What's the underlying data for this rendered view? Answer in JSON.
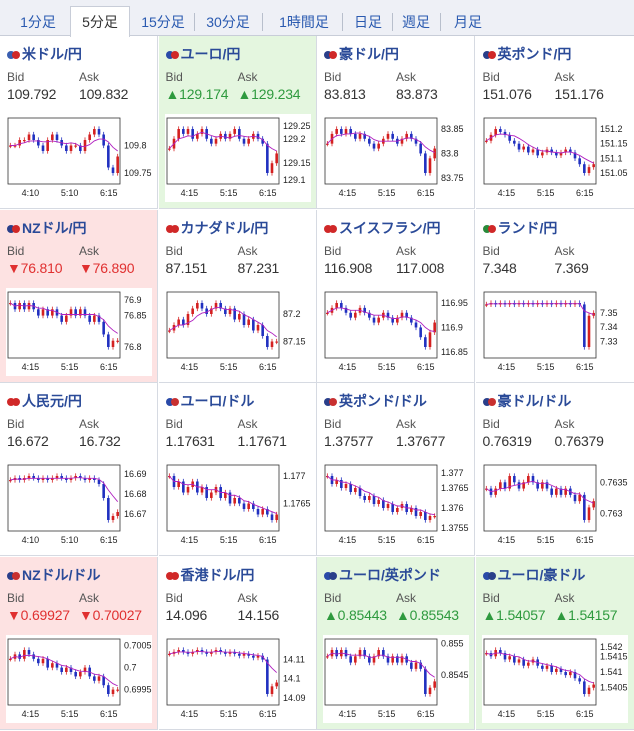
{
  "tabs": [
    "1分足",
    "5分足",
    "15分足",
    "30分足",
    "1時間足",
    "日足",
    "週足",
    "月足"
  ],
  "active_tab": 1,
  "cells": [
    {
      "pair": "米ドル/円",
      "trend": "none",
      "bid": "109.792",
      "ask": "109.832",
      "bid_dir": "",
      "ask_dir": "",
      "flag": [
        "#3a5fb0",
        "#d02828"
      ],
      "chart_data": {
        "type": "candlestick",
        "x_ticks": [
          "4:10",
          "5:10",
          "6:15"
        ],
        "y_ticks": [
          "109.8",
          "109.75"
        ],
        "closes": [
          109.8,
          109.8,
          109.81,
          109.81,
          109.82,
          109.81,
          109.8,
          109.79,
          109.81,
          109.82,
          109.81,
          109.8,
          109.79,
          109.8,
          109.8,
          109.79,
          109.81,
          109.82,
          109.83,
          109.82,
          109.8,
          109.76,
          109.75,
          109.78
        ]
      }
    },
    {
      "pair": "ユーロ/円",
      "trend": "up",
      "bid": "129.174",
      "ask": "129.234",
      "bid_dir": "▲",
      "ask_dir": "▲",
      "flag": [
        "#2a4aa8",
        "#d02828"
      ],
      "chart_data": {
        "type": "candlestick",
        "x_ticks": [
          "4:15",
          "5:15",
          "6:15"
        ],
        "y_ticks": [
          "129.25",
          "129.2",
          "129.15",
          "129.1"
        ],
        "closes": [
          129.18,
          129.2,
          129.22,
          129.21,
          129.22,
          129.2,
          129.21,
          129.22,
          129.2,
          129.19,
          129.2,
          129.21,
          129.2,
          129.21,
          129.22,
          129.2,
          129.19,
          129.2,
          129.21,
          129.2,
          129.19,
          129.13,
          129.15,
          129.17
        ]
      }
    },
    {
      "pair": "豪ドル/円",
      "trend": "none",
      "bid": "83.813",
      "ask": "83.873",
      "bid_dir": "",
      "ask_dir": "",
      "flag": [
        "#2a3f8a",
        "#d02828"
      ],
      "chart_data": {
        "type": "candlestick",
        "x_ticks": [
          "4:15",
          "5:15",
          "6:15"
        ],
        "y_ticks": [
          "83.85",
          "83.8",
          "83.75"
        ],
        "closes": [
          83.82,
          83.84,
          83.85,
          83.84,
          83.85,
          83.84,
          83.83,
          83.84,
          83.83,
          83.82,
          83.81,
          83.82,
          83.83,
          83.84,
          83.83,
          83.82,
          83.83,
          83.84,
          83.83,
          83.82,
          83.8,
          83.76,
          83.79,
          83.81
        ]
      }
    },
    {
      "pair": "英ポンド/円",
      "trend": "none",
      "bid": "151.076",
      "ask": "151.176",
      "bid_dir": "",
      "ask_dir": "",
      "flag": [
        "#2a3f8a",
        "#d02828"
      ],
      "chart_data": {
        "type": "candlestick",
        "x_ticks": [
          "4:15",
          "5:15",
          "6:15"
        ],
        "y_ticks": [
          "151.2",
          "151.15",
          "151.1",
          "151.05"
        ],
        "closes": [
          151.16,
          151.18,
          151.2,
          151.19,
          151.18,
          151.16,
          151.15,
          151.13,
          151.14,
          151.12,
          151.13,
          151.11,
          151.12,
          151.13,
          151.12,
          151.11,
          151.12,
          151.13,
          151.12,
          151.1,
          151.08,
          151.05,
          151.07,
          151.08
        ]
      }
    },
    {
      "pair": "NZドル/円",
      "trend": "down",
      "bid": "76.810",
      "ask": "76.890",
      "bid_dir": "▼",
      "ask_dir": "▼",
      "flag": [
        "#2a3f8a",
        "#d02828"
      ],
      "chart_data": {
        "type": "candlestick",
        "x_ticks": [
          "4:15",
          "5:15",
          "6:15"
        ],
        "y_ticks": [
          "76.9",
          "76.85",
          "76.8"
        ],
        "closes": [
          76.87,
          76.86,
          76.87,
          76.86,
          76.87,
          76.86,
          76.85,
          76.86,
          76.85,
          76.86,
          76.85,
          76.84,
          76.85,
          76.86,
          76.85,
          76.86,
          76.85,
          76.84,
          76.85,
          76.84,
          76.82,
          76.8,
          76.81,
          76.81
        ]
      }
    },
    {
      "pair": "カナダドル/円",
      "trend": "none",
      "bid": "87.151",
      "ask": "87.231",
      "bid_dir": "",
      "ask_dir": "",
      "flag": [
        "#d02828",
        "#d02828"
      ],
      "chart_data": {
        "type": "candlestick",
        "x_ticks": [
          "4:15",
          "5:15",
          "6:15"
        ],
        "y_ticks": [
          "87.2",
          "87.15"
        ],
        "closes": [
          87.17,
          87.18,
          87.19,
          87.18,
          87.2,
          87.21,
          87.22,
          87.21,
          87.2,
          87.21,
          87.22,
          87.21,
          87.2,
          87.21,
          87.19,
          87.2,
          87.18,
          87.19,
          87.17,
          87.18,
          87.16,
          87.14,
          87.15,
          87.15
        ]
      }
    },
    {
      "pair": "スイスフラン/円",
      "trend": "none",
      "bid": "116.908",
      "ask": "117.008",
      "bid_dir": "",
      "ask_dir": "",
      "flag": [
        "#d02828",
        "#d02828"
      ],
      "chart_data": {
        "type": "candlestick",
        "x_ticks": [
          "4:15",
          "5:15",
          "6:15"
        ],
        "y_ticks": [
          "116.95",
          "116.9",
          "116.85"
        ],
        "closes": [
          116.93,
          116.94,
          116.95,
          116.94,
          116.93,
          116.92,
          116.93,
          116.94,
          116.93,
          116.92,
          116.91,
          116.92,
          116.93,
          116.92,
          116.91,
          116.92,
          116.93,
          116.92,
          116.91,
          116.9,
          116.88,
          116.86,
          116.89,
          116.91
        ]
      }
    },
    {
      "pair": "ランド/円",
      "trend": "none",
      "bid": "7.348",
      "ask": "7.369",
      "bid_dir": "",
      "ask_dir": "",
      "flag": [
        "#2a8a3a",
        "#d02828"
      ],
      "chart_data": {
        "type": "candlestick",
        "x_ticks": [
          "4:15",
          "5:15",
          "6:15"
        ],
        "y_ticks": [
          "7.35",
          "7.34",
          "7.33"
        ],
        "closes": [
          7.356,
          7.357,
          7.356,
          7.357,
          7.356,
          7.357,
          7.356,
          7.357,
          7.356,
          7.357,
          7.356,
          7.357,
          7.356,
          7.357,
          7.356,
          7.357,
          7.356,
          7.357,
          7.356,
          7.357,
          7.356,
          7.326,
          7.348,
          7.35
        ]
      }
    },
    {
      "pair": "人民元/円",
      "trend": "none",
      "bid": "16.672",
      "ask": "16.732",
      "bid_dir": "",
      "ask_dir": "",
      "flag": [
        "#d02828",
        "#d02828"
      ],
      "chart_data": {
        "type": "candlestick",
        "x_ticks": [
          "4:10",
          "5:10",
          "6:15"
        ],
        "y_ticks": [
          "16.69",
          "16.68",
          "16.67"
        ],
        "closes": [
          16.687,
          16.688,
          16.687,
          16.688,
          16.689,
          16.688,
          16.687,
          16.688,
          16.687,
          16.688,
          16.689,
          16.688,
          16.687,
          16.688,
          16.689,
          16.688,
          16.687,
          16.688,
          16.687,
          16.685,
          16.678,
          16.667,
          16.669,
          16.671
        ]
      }
    },
    {
      "pair": "ユーロ/ドル",
      "trend": "none",
      "bid": "1.17631",
      "ask": "1.17671",
      "bid_dir": "",
      "ask_dir": "",
      "flag": [
        "#2a4aa8",
        "#c83030"
      ],
      "chart_data": {
        "type": "candlestick",
        "x_ticks": [
          "4:15",
          "5:15",
          "6:15"
        ],
        "y_ticks": [
          "1.177",
          "1.1765"
        ],
        "closes": [
          1.177,
          1.1768,
          1.1769,
          1.1767,
          1.1768,
          1.1769,
          1.1767,
          1.1768,
          1.1766,
          1.1767,
          1.1768,
          1.1766,
          1.1767,
          1.1765,
          1.1766,
          1.1765,
          1.1764,
          1.1765,
          1.1764,
          1.1763,
          1.1764,
          1.1763,
          1.1762,
          1.1763
        ]
      }
    },
    {
      "pair": "英ポンド/ドル",
      "trend": "none",
      "bid": "1.37577",
      "ask": "1.37677",
      "bid_dir": "",
      "ask_dir": "",
      "flag": [
        "#2a3f8a",
        "#c83030"
      ],
      "chart_data": {
        "type": "candlestick",
        "x_ticks": [
          "4:15",
          "5:15",
          "6:15"
        ],
        "y_ticks": [
          "1.377",
          "1.3765",
          "1.376",
          "1.3755"
        ],
        "closes": [
          1.3768,
          1.3766,
          1.3767,
          1.3765,
          1.3766,
          1.3764,
          1.3765,
          1.3763,
          1.3762,
          1.3763,
          1.3761,
          1.3762,
          1.376,
          1.3761,
          1.3759,
          1.376,
          1.3761,
          1.3759,
          1.376,
          1.3758,
          1.3759,
          1.3757,
          1.3758,
          1.3758
        ]
      }
    },
    {
      "pair": "豪ドル/ドル",
      "trend": "none",
      "bid": "0.76319",
      "ask": "0.76379",
      "bid_dir": "",
      "ask_dir": "",
      "flag": [
        "#2a3f8a",
        "#c83030"
      ],
      "chart_data": {
        "type": "candlestick",
        "x_ticks": [
          "4:15",
          "5:15",
          "6:15"
        ],
        "y_ticks": [
          "0.7635",
          "0.763"
        ],
        "closes": [
          0.7634,
          0.7633,
          0.7634,
          0.7635,
          0.7634,
          0.7636,
          0.7635,
          0.7634,
          0.7635,
          0.7636,
          0.7635,
          0.7634,
          0.7635,
          0.7634,
          0.7633,
          0.7634,
          0.7633,
          0.7634,
          0.7633,
          0.7632,
          0.7633,
          0.7629,
          0.7631,
          0.7632
        ]
      }
    },
    {
      "pair": "NZドル/ドル",
      "trend": "down",
      "bid": "0.69927",
      "ask": "0.70027",
      "bid_dir": "▼",
      "ask_dir": "▼",
      "flag": [
        "#2a3f8a",
        "#c83030"
      ],
      "chart_data": {
        "type": "candlestick",
        "x_ticks": [
          "4:15",
          "5:15",
          "6:15"
        ],
        "y_ticks": [
          "0.7005",
          "0.7",
          "0.6995"
        ],
        "closes": [
          0.7002,
          0.7003,
          0.7002,
          0.7004,
          0.7003,
          0.7002,
          0.7001,
          0.7002,
          0.7,
          0.7001,
          0.7,
          0.6999,
          0.7,
          0.6999,
          0.6998,
          0.6999,
          0.7,
          0.6998,
          0.6997,
          0.6998,
          0.6996,
          0.6994,
          0.6995,
          0.6995
        ]
      }
    },
    {
      "pair": "香港ドル/円",
      "trend": "none",
      "bid": "14.096",
      "ask": "14.156",
      "bid_dir": "",
      "ask_dir": "",
      "flag": [
        "#d02828",
        "#d02828"
      ],
      "chart_data": {
        "type": "candlestick",
        "x_ticks": [
          "4:15",
          "5:15",
          "6:15"
        ],
        "y_ticks": [
          "14.11",
          "14.1",
          "14.09"
        ],
        "closes": [
          14.113,
          14.114,
          14.115,
          14.114,
          14.113,
          14.114,
          14.115,
          14.114,
          14.113,
          14.114,
          14.115,
          14.114,
          14.113,
          14.114,
          14.113,
          14.112,
          14.113,
          14.112,
          14.111,
          14.112,
          14.11,
          14.092,
          14.096,
          14.098
        ]
      }
    },
    {
      "pair": "ユーロ/英ポンド",
      "trend": "up",
      "bid": "0.85443",
      "ask": "0.85543",
      "bid_dir": "▲",
      "ask_dir": "▲",
      "flag": [
        "#2a4aa8",
        "#2a3f8a"
      ],
      "chart_data": {
        "type": "candlestick",
        "x_ticks": [
          "4:15",
          "5:15",
          "6:15"
        ],
        "y_ticks": [
          "0.855",
          "0.8545"
        ],
        "closes": [
          0.8548,
          0.8549,
          0.8548,
          0.8549,
          0.8548,
          0.8547,
          0.8548,
          0.8549,
          0.8548,
          0.8547,
          0.8548,
          0.8549,
          0.8548,
          0.8547,
          0.8548,
          0.8547,
          0.8548,
          0.8547,
          0.8546,
          0.8547,
          0.8546,
          0.8542,
          0.8543,
          0.8544
        ]
      }
    },
    {
      "pair": "ユーロ/豪ドル",
      "trend": "up",
      "bid": "1.54057",
      "ask": "1.54157",
      "bid_dir": "▲",
      "ask_dir": "▲",
      "flag": [
        "#2a4aa8",
        "#2a3f8a"
      ],
      "chart_data": {
        "type": "candlestick",
        "x_ticks": [
          "4:15",
          "5:15",
          "6:15"
        ],
        "y_ticks": [
          "1.542",
          "1.5415",
          "1.541",
          "1.5405"
        ],
        "closes": [
          1.5416,
          1.5415,
          1.5417,
          1.5416,
          1.5414,
          1.5415,
          1.5413,
          1.5414,
          1.5412,
          1.5413,
          1.5414,
          1.5412,
          1.5411,
          1.5412,
          1.541,
          1.5411,
          1.541,
          1.5409,
          1.541,
          1.5408,
          1.5407,
          1.5403,
          1.5405,
          1.5406
        ]
      }
    }
  ]
}
